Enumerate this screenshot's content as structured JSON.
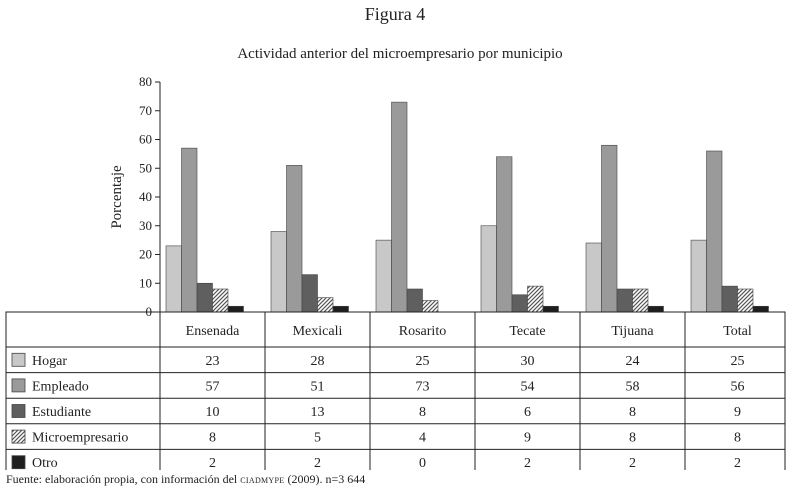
{
  "figure_label": "Figura 4",
  "source": {
    "prefix": "Fuente: elaboración propia, con información del ",
    "org": "ciadmype",
    "suffix": " (2009). n=3 644"
  },
  "chart_data": {
    "type": "bar",
    "title": "Actividad anterior del microempresario por municipio",
    "ylabel": "Porcentaje",
    "xlabel": "",
    "ylim": [
      0,
      80
    ],
    "yticks": [
      0,
      10,
      20,
      30,
      40,
      50,
      60,
      70,
      80
    ],
    "grid": false,
    "legend": "table-left",
    "categories": [
      "Ensenada",
      "Mexicali",
      "Rosarito",
      "Tecate",
      "Tijuana",
      "Total"
    ],
    "series": [
      {
        "name": "Hogar",
        "color": "#c8c8c8",
        "pattern": "solid",
        "values": [
          23,
          28,
          25,
          30,
          24,
          25
        ]
      },
      {
        "name": "Empleado",
        "color": "#9a9a9a",
        "pattern": "solid",
        "values": [
          57,
          51,
          73,
          54,
          58,
          56
        ]
      },
      {
        "name": "Estudiante",
        "color": "#5f5f5f",
        "pattern": "solid",
        "values": [
          10,
          13,
          8,
          6,
          8,
          9
        ]
      },
      {
        "name": "Microempresario",
        "color": "#8a8a8a",
        "pattern": "hatch",
        "values": [
          8,
          5,
          4,
          9,
          8,
          8
        ]
      },
      {
        "name": "Otro",
        "color": "#1e1e1e",
        "pattern": "solid",
        "values": [
          2,
          2,
          0,
          2,
          2,
          2
        ]
      }
    ]
  }
}
